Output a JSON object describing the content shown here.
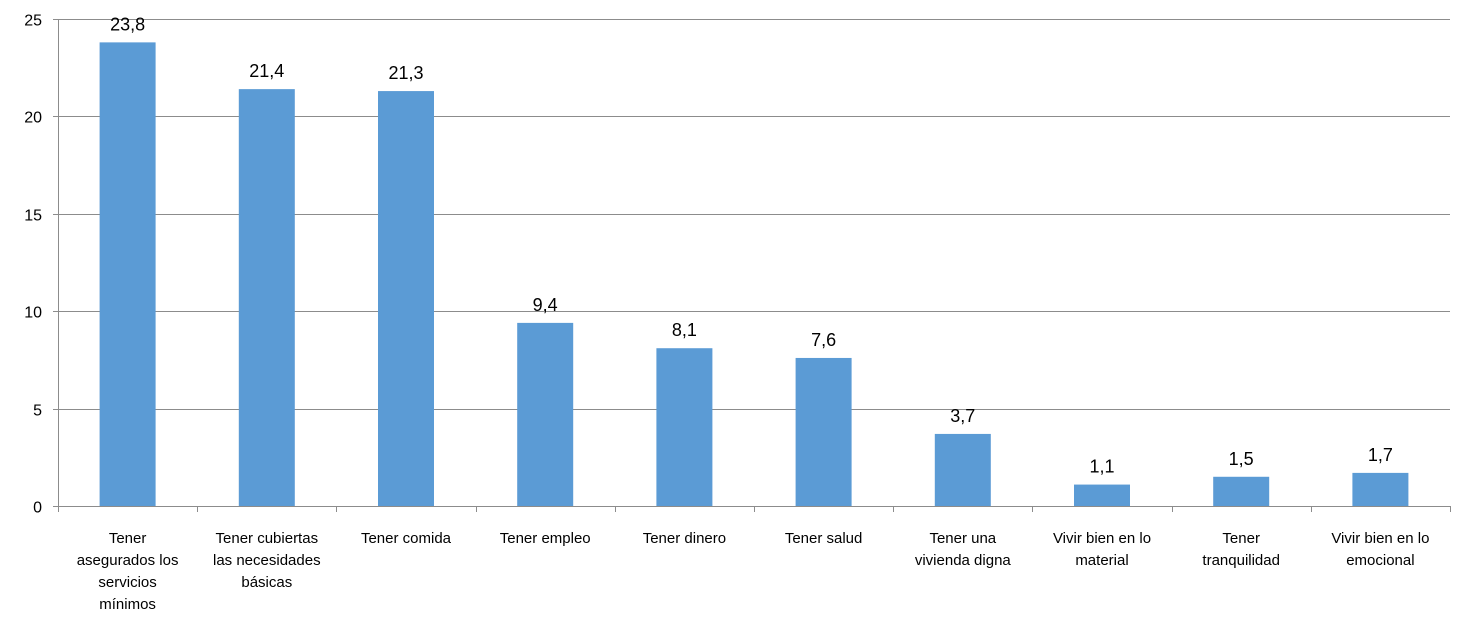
{
  "chart_data": {
    "type": "bar",
    "title": "",
    "xlabel": "",
    "ylabel": "",
    "ylim": [
      0,
      25
    ],
    "yticks": [
      0,
      5,
      10,
      15,
      20,
      25
    ],
    "grid": true,
    "legend": "none",
    "bar_color": "#5b9bd5",
    "categories": [
      [
        "Tener",
        "asegurados los",
        "servicios",
        "mínimos"
      ],
      [
        "Tener cubiertas",
        "las necesidades",
        "básicas"
      ],
      [
        "Tener comida"
      ],
      [
        "Tener empleo"
      ],
      [
        "Tener dinero"
      ],
      [
        "Tener salud"
      ],
      [
        "Tener una",
        "vivienda digna"
      ],
      [
        "Vivir bien en lo",
        "material"
      ],
      [
        "Tener",
        "tranquilidad"
      ],
      [
        "Vivir bien en lo",
        "emocional"
      ]
    ],
    "values": [
      23.8,
      21.4,
      21.3,
      9.4,
      8.1,
      7.6,
      3.7,
      1.1,
      1.5,
      1.7
    ],
    "data_labels": [
      "23,8",
      "21,4",
      "21,3",
      "9,4",
      "8,1",
      "7,6",
      "3,7",
      "1,1",
      "1,5",
      "1,7"
    ]
  }
}
